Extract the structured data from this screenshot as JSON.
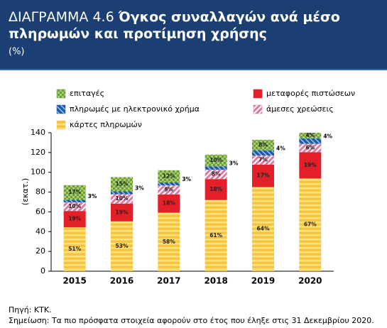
{
  "chart_data": {
    "type": "stacked_bar",
    "title_prefix": "ΔΙΑΓΡΑΜΜΑ 4.6",
    "title": [
      "Όγκος συναλλαγών ανά μέσο",
      "πληρωμών και προτίμηση χρήσης"
    ],
    "subtitle": "(%)",
    "y_label": "(εκατ.)",
    "categories": [
      "2015",
      "2016",
      "2017",
      "2018",
      "2019",
      "2020"
    ],
    "series": [
      {
        "name": "κάρτες πληρωμών",
        "color": "#f6c343",
        "values": [
          44.4,
          50.4,
          59.2,
          72.0,
          85.1,
          93.8
        ],
        "share_labels": [
          "51%",
          "53%",
          "58%",
          "61%",
          "64%",
          "67%"
        ]
      },
      {
        "name": "μεταφορές πιστώσεων",
        "color": "#e3202a",
        "values": [
          16.5,
          18.0,
          18.4,
          21.2,
          22.6,
          26.6
        ],
        "share_labels": [
          "19%",
          "19%",
          "18%",
          "18%",
          "17%",
          "19%"
        ]
      },
      {
        "name": "άμεσες χρεώσεις",
        "color": "#dd7aa2",
        "values": [
          8.7,
          9.5,
          9.2,
          9.4,
          9.3,
          8.4
        ],
        "share_labels": [
          "10%",
          "10%",
          "9%",
          "8%",
          "7%",
          "6%"
        ]
      },
      {
        "name": "πληρωμές με ηλεκτρονικό χρήμα",
        "color": "#1f5ca8",
        "values": [
          2.6,
          2.9,
          3.1,
          3.5,
          5.3,
          5.6
        ],
        "share_labels": [
          "3%",
          "3%",
          "3%",
          "3%",
          "4%",
          "4%"
        ]
      },
      {
        "name": "επιταγές",
        "color": "#6b9b3a",
        "values": [
          14.8,
          14.3,
          12.2,
          11.8,
          10.6,
          5.6
        ],
        "share_labels": [
          "17%",
          "15%",
          "12%",
          "10%",
          "8%",
          "4%"
        ]
      }
    ],
    "ylim": [
      0,
      140
    ],
    "yticks": [
      0,
      20,
      40,
      60,
      80,
      100,
      120,
      140
    ],
    "source": "Πηγή: ΚΤΚ.",
    "note": "Σημείωση: Τα πιο πρόσφατα στοιχεία αφορούν στο έτος που έληξε στις 31 Δεκεμβρίου 2020."
  }
}
